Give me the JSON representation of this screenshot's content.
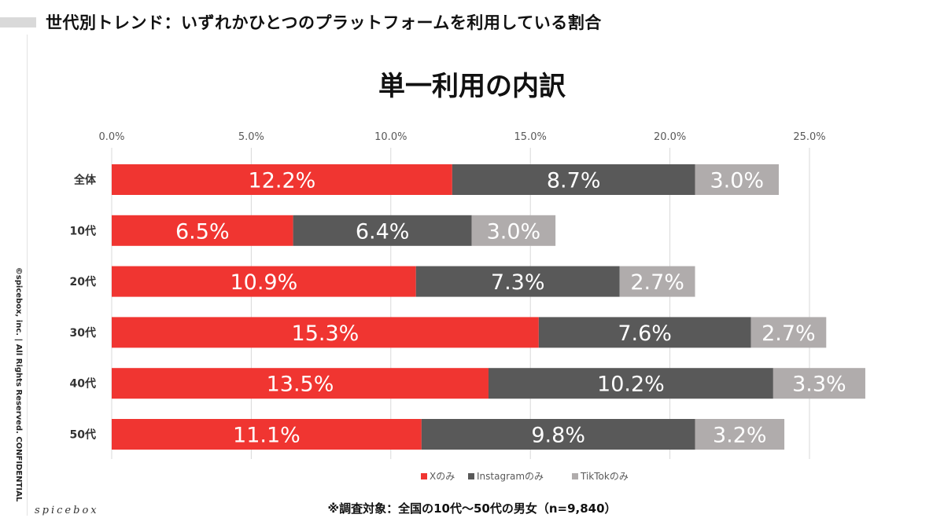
{
  "header": {
    "title": "世代別トレンド：いずれかひとつのプラットフォームを利用している割合"
  },
  "sidebar": {
    "copyright": "©spicebox, inc. | All Rights Reserved. CONFIDENTIAL",
    "logo": "spicebox"
  },
  "footnote": "※調査対象：全国の10代〜50代の男女（n=9,840）",
  "chart_data": {
    "type": "bar",
    "orientation": "horizontal",
    "stacked": true,
    "title": "単一利用の内訳",
    "categories": [
      "全体",
      "10代",
      "20代",
      "30代",
      "40代",
      "50代"
    ],
    "series": [
      {
        "name": "Xのみ",
        "color": "#f03531",
        "values": [
          12.2,
          6.5,
          10.9,
          15.3,
          13.5,
          11.1
        ],
        "labels": [
          "12.2%",
          "6.5%",
          "10.9%",
          "15.3%",
          "13.5%",
          "11.1%"
        ]
      },
      {
        "name": "Instagramのみ",
        "color": "#595959",
        "values": [
          8.7,
          6.4,
          7.3,
          7.6,
          10.2,
          9.8
        ],
        "labels": [
          "8.7%",
          "6.4%",
          "7.3%",
          "7.6%",
          "10.2%",
          "9.8%"
        ]
      },
      {
        "name": "TikTokのみ",
        "color": "#b0acac",
        "values": [
          3.0,
          3.0,
          2.7,
          2.7,
          3.3,
          3.2
        ],
        "labels": [
          "3.0%",
          "3.0%",
          "2.7%",
          "2.7%",
          "3.3%",
          "3.2%"
        ]
      }
    ],
    "xlim": [
      0,
      25
    ],
    "xticks": [
      0,
      5,
      10,
      15,
      20,
      25
    ],
    "xtick_labels": [
      "0.0%",
      "5.0%",
      "10.0%",
      "15.0%",
      "20.0%",
      "25.0%"
    ],
    "axis_position": "top",
    "grid": true,
    "legend_position": "bottom"
  }
}
